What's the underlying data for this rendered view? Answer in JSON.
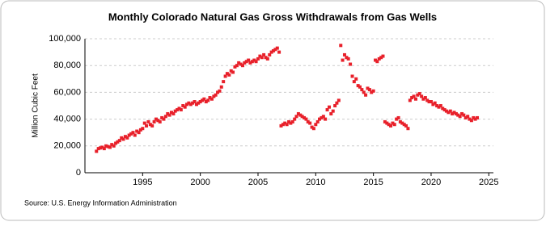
{
  "chart_data": {
    "type": "scatter",
    "title": "Monthly Colorado Natural Gas Gross Withdrawals from Gas Wells",
    "y_label": "Million Cubic Feet",
    "source": "Source: U.S. Energy Information Administration",
    "color": "#e8202a",
    "xlim": [
      1990,
      2025.4
    ],
    "ylim": [
      0,
      100000
    ],
    "xticks": [
      1995,
      2000,
      2005,
      2010,
      2015,
      2020,
      2025
    ],
    "yticks": [
      0,
      {
        "value": 20000,
        "label": "20,000"
      },
      {
        "value": 40000,
        "label": "40,000"
      },
      {
        "value": 60000,
        "label": "60,000"
      },
      {
        "value": 80000,
        "label": "80,000"
      },
      {
        "value": 100000,
        "label": "100,000"
      }
    ],
    "grid": true,
    "x": [
      1991,
      1991.17,
      1991.33,
      1991.5,
      1991.67,
      1991.83,
      1992,
      1992.17,
      1992.33,
      1992.5,
      1992.67,
      1992.83,
      1993,
      1993.17,
      1993.33,
      1993.5,
      1993.67,
      1993.83,
      1994,
      1994.17,
      1994.33,
      1994.5,
      1994.67,
      1994.83,
      1995,
      1995.17,
      1995.33,
      1995.5,
      1995.67,
      1995.83,
      1996,
      1996.17,
      1996.33,
      1996.5,
      1996.67,
      1996.83,
      1997,
      1997.17,
      1997.33,
      1997.5,
      1997.67,
      1997.83,
      1998,
      1998.17,
      1998.33,
      1998.5,
      1998.67,
      1998.83,
      1999,
      1999.17,
      1999.33,
      1999.5,
      1999.67,
      1999.83,
      2000,
      2000.17,
      2000.33,
      2000.5,
      2000.67,
      2000.83,
      2001,
      2001.17,
      2001.33,
      2001.5,
      2001.67,
      2001.83,
      2002,
      2002.17,
      2002.33,
      2002.5,
      2002.67,
      2002.83,
      2003,
      2003.17,
      2003.33,
      2003.5,
      2003.67,
      2003.83,
      2004,
      2004.17,
      2004.33,
      2004.5,
      2004.67,
      2004.83,
      2005,
      2005.17,
      2005.33,
      2005.5,
      2005.67,
      2005.83,
      2006,
      2006.17,
      2006.33,
      2006.5,
      2006.67,
      2006.83,
      2007,
      2007.17,
      2007.33,
      2007.5,
      2007.67,
      2007.83,
      2008,
      2008.17,
      2008.33,
      2008.5,
      2008.67,
      2008.83,
      2009,
      2009.17,
      2009.33,
      2009.5,
      2009.67,
      2009.83,
      2010,
      2010.17,
      2010.33,
      2010.5,
      2010.67,
      2010.83,
      2011,
      2011.17,
      2011.33,
      2011.5,
      2011.67,
      2011.83,
      2012,
      2012.17,
      2012.33,
      2012.5,
      2012.67,
      2012.83,
      2013,
      2013.17,
      2013.33,
      2013.5,
      2013.67,
      2013.83,
      2014,
      2014.17,
      2014.33,
      2014.5,
      2014.67,
      2014.83,
      2015,
      2015.17,
      2015.33,
      2015.5,
      2015.67,
      2015.83,
      2016,
      2016.17,
      2016.33,
      2016.5,
      2016.67,
      2016.83,
      2017,
      2017.17,
      2017.33,
      2017.5,
      2017.67,
      2017.83,
      2018,
      2018.17,
      2018.33,
      2018.5,
      2018.67,
      2018.83,
      2019,
      2019.17,
      2019.33,
      2019.5,
      2019.67,
      2019.83,
      2020,
      2020.17,
      2020.33,
      2020.5,
      2020.67,
      2020.83,
      2021,
      2021.17,
      2021.33,
      2021.5,
      2021.67,
      2021.83,
      2022,
      2022.17,
      2022.33,
      2022.5,
      2022.67,
      2022.83,
      2023,
      2023.17,
      2023.33,
      2023.5,
      2023.67,
      2023.83,
      2024
    ],
    "values": [
      16000,
      18000,
      18500,
      19000,
      18000,
      20000,
      19500,
      19000,
      21000,
      20000,
      22000,
      23000,
      24000,
      26000,
      25000,
      27000,
      26000,
      28000,
      29000,
      30000,
      28000,
      31000,
      30000,
      32000,
      33000,
      37000,
      35000,
      38000,
      36000,
      35000,
      38000,
      40000,
      39000,
      38000,
      41000,
      40000,
      42000,
      44000,
      43000,
      45000,
      44000,
      46000,
      47000,
      48000,
      47000,
      50000,
      49000,
      51000,
      52000,
      51000,
      52000,
      53000,
      51000,
      52000,
      53000,
      54000,
      55000,
      53000,
      54000,
      56000,
      55000,
      57000,
      58000,
      60000,
      61000,
      64000,
      68000,
      72000,
      74000,
      73000,
      76000,
      75000,
      79000,
      80000,
      82000,
      81000,
      80000,
      82000,
      83000,
      84000,
      82000,
      83000,
      84000,
      83000,
      85000,
      87000,
      86000,
      88000,
      86000,
      85000,
      88000,
      90000,
      91000,
      92000,
      93000,
      90000,
      35000,
      36000,
      37000,
      36000,
      38000,
      37000,
      38000,
      40000,
      42000,
      44000,
      43000,
      42000,
      41000,
      40000,
      38000,
      37000,
      34000,
      33000,
      36000,
      38000,
      40000,
      41000,
      42000,
      40000,
      47000,
      49000,
      44000,
      46000,
      50000,
      52000,
      54000,
      95000,
      84000,
      88000,
      86000,
      85000,
      81000,
      72000,
      68000,
      70000,
      65000,
      64000,
      62000,
      60000,
      58000,
      63000,
      62000,
      60000,
      61000,
      84000,
      83000,
      85000,
      86000,
      87000,
      38000,
      37000,
      36000,
      35000,
      37000,
      36000,
      40000,
      41000,
      38000,
      37000,
      36000,
      35000,
      33000,
      54000,
      56000,
      57000,
      55000,
      58000,
      59000,
      57000,
      55000,
      56000,
      54000,
      53000,
      53000,
      51000,
      52000,
      50000,
      49000,
      50000,
      48000,
      47000,
      46000,
      45000,
      46000,
      44000,
      45000,
      44000,
      43000,
      42000,
      44000,
      43000,
      41000,
      42000,
      40000,
      39000,
      41000,
      40000,
      41000
    ]
  }
}
